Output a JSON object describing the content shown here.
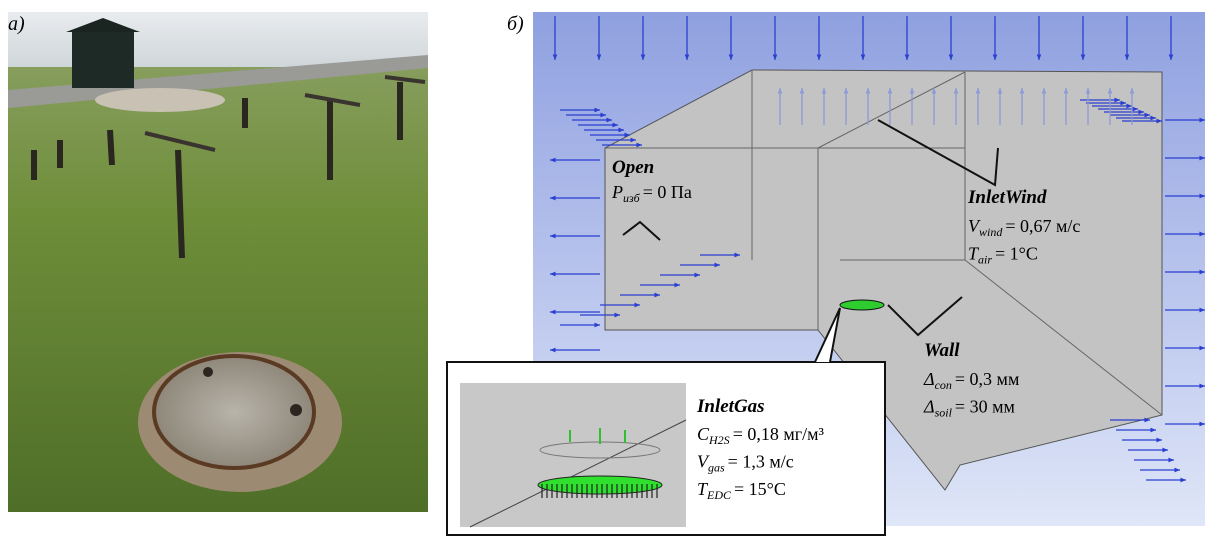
{
  "panel_a": {
    "label": "а)"
  },
  "panel_b": {
    "label": "б)",
    "conditions": [
      {
        "name": "Open",
        "params": [
          {
            "symbol": "P",
            "subscript": "изб",
            "value": "= 0 Па"
          }
        ]
      },
      {
        "name": "InletWind",
        "params": [
          {
            "symbol": "V",
            "subscript": "wind",
            "value": "= 0,67 м/с"
          },
          {
            "symbol": "T",
            "subscript": "air",
            "value": "= 1°C"
          }
        ]
      },
      {
        "name": "Wall",
        "params": [
          {
            "symbol": "Δ",
            "subscript": "con",
            "value": "= 0,3 мм"
          },
          {
            "symbol": "Δ",
            "subscript": "soil",
            "value": "= 30 мм"
          }
        ]
      },
      {
        "name": "InletGas",
        "params": [
          {
            "symbol": "C",
            "subscript": "H2S",
            "value": "= 0,18 мг/м³"
          },
          {
            "symbol": "V",
            "subscript": "gas",
            "value": "= 1,3 м/с"
          },
          {
            "symbol": "T",
            "subscript": "EDC",
            "value": "= 15°C"
          }
        ]
      }
    ]
  }
}
